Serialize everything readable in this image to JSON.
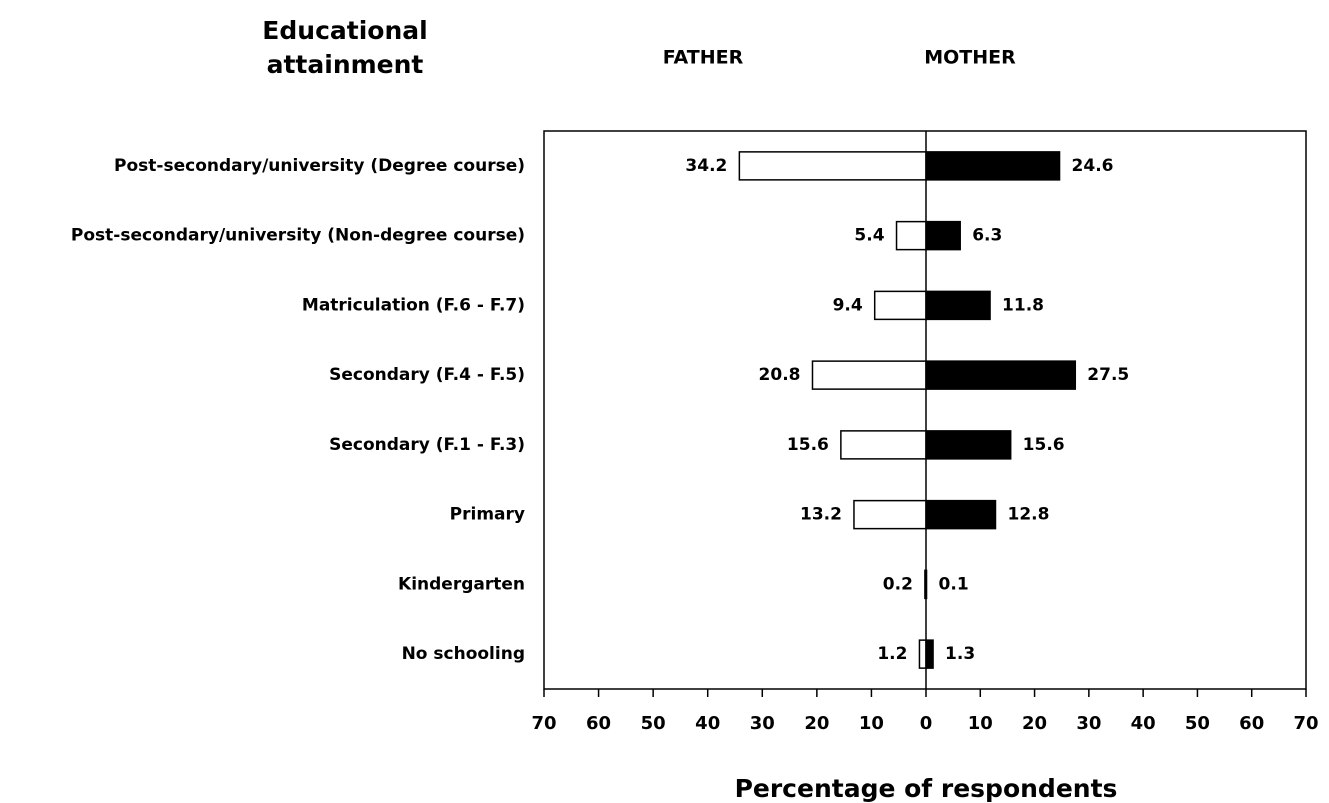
{
  "chart_data": [
    {
      "type": "bar",
      "orientation": "horizontal",
      "title": "FATHER",
      "y_label": "Educational attainment",
      "x_label": "Percentage of respondents",
      "categories": [
        "Post-secondary/university (Degree course)",
        "Post-secondary/university (Non-degree course)",
        "Matriculation (F.6 - F.7)",
        "Secondary (F.4 - F.5)",
        "Secondary (F.1 - F.3)",
        "Primary",
        "Kindergarten",
        "No schooling"
      ],
      "values": [
        34.2,
        5.4,
        9.4,
        20.8,
        15.6,
        13.2,
        0.2,
        1.2
      ],
      "color": "#ffffff",
      "xlim": [
        70,
        0
      ],
      "xticks": [
        70,
        60,
        50,
        40,
        30,
        20,
        10
      ]
    },
    {
      "type": "bar",
      "orientation": "horizontal",
      "title": "MOTHER",
      "values": [
        24.6,
        6.3,
        11.8,
        27.5,
        15.6,
        12.8,
        0.1,
        1.3
      ],
      "color": "#000000",
      "xlim": [
        0,
        70
      ],
      "xticks": [
        0,
        10,
        20,
        30,
        40,
        50,
        60,
        70
      ]
    }
  ]
}
